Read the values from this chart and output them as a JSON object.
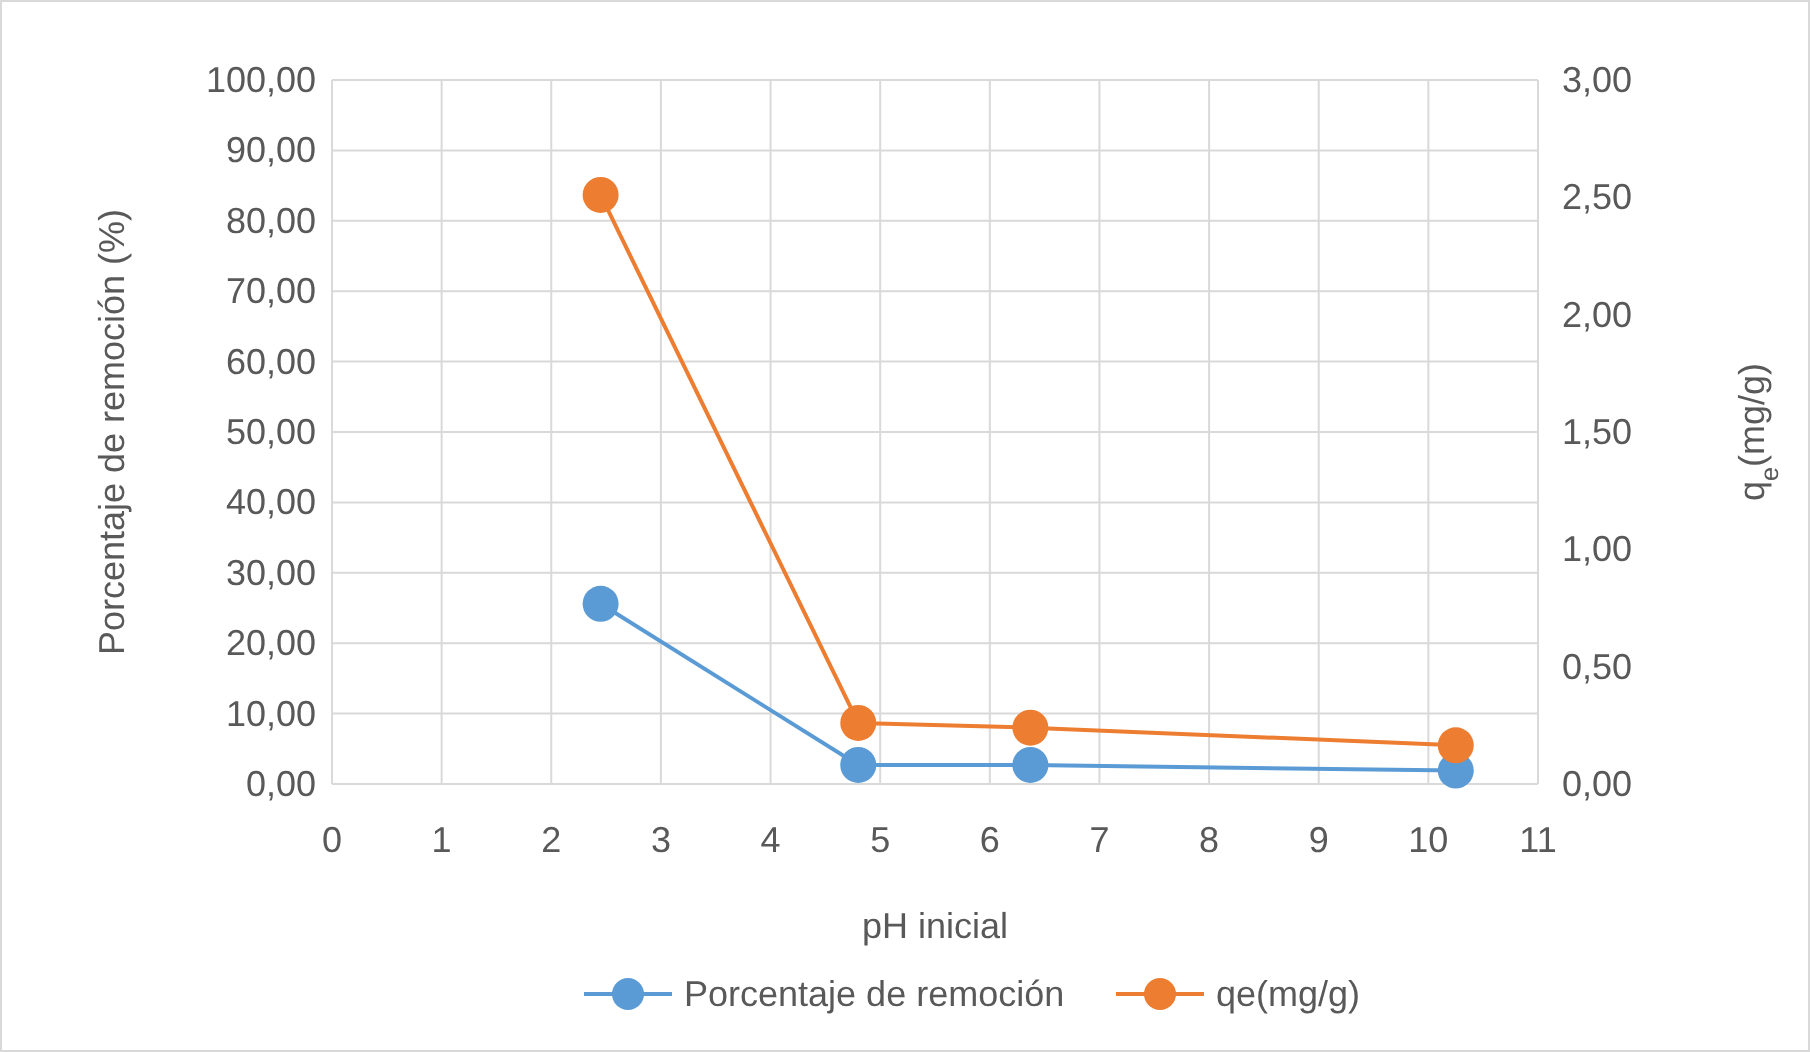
{
  "chart_data": {
    "type": "line",
    "xlabel": "pH inicial",
    "ylabel": "Porcentaje de remoción (%)",
    "y2label": "q$_{e}$(mg/g)",
    "xlim": [
      0,
      11
    ],
    "xticks": [
      0,
      1,
      2,
      3,
      4,
      5,
      6,
      7,
      8,
      9,
      10,
      11
    ],
    "ylim": [
      0,
      100
    ],
    "yticks": [
      {
        "value": 0,
        "label": "0,00"
      },
      {
        "value": 10,
        "label": "10,00"
      },
      {
        "value": 20,
        "label": "20,00"
      },
      {
        "value": 30,
        "label": "30,00"
      },
      {
        "value": 40,
        "label": "40,00"
      },
      {
        "value": 50,
        "label": "50,00"
      },
      {
        "value": 60,
        "label": "60,00"
      },
      {
        "value": 70,
        "label": "70,00"
      },
      {
        "value": 80,
        "label": "80,00"
      },
      {
        "value": 90,
        "label": "90,00"
      },
      {
        "value": 100,
        "label": "100,00"
      }
    ],
    "y2lim": [
      0,
      3
    ],
    "y2ticks": [
      {
        "value": 0,
        "label": "0,00"
      },
      {
        "value": 0.5,
        "label": "0,50"
      },
      {
        "value": 1,
        "label": "1,00"
      },
      {
        "value": 1.5,
        "label": "1,50"
      },
      {
        "value": 2,
        "label": "2,00"
      },
      {
        "value": 2.5,
        "label": "2,50"
      },
      {
        "value": 3,
        "label": "3,00"
      }
    ],
    "grid": true,
    "legend": "bottom",
    "marker": "circle",
    "series": [
      {
        "name": "Porcentaje de remoción",
        "color": "#5b9bd5",
        "x": [
          2.45,
          4.8,
          6.37,
          10.25
        ],
        "values": [
          25.6,
          2.7,
          2.7,
          1.9
        ]
      },
      {
        "name": "qe(mg/g)",
        "color": "#ed7d31",
        "axis": "y2",
        "x": [
          2.45,
          4.8,
          6.37,
          10.25
        ],
        "values": [
          2.51,
          0.26,
          0.24,
          0.165
        ]
      }
    ]
  }
}
